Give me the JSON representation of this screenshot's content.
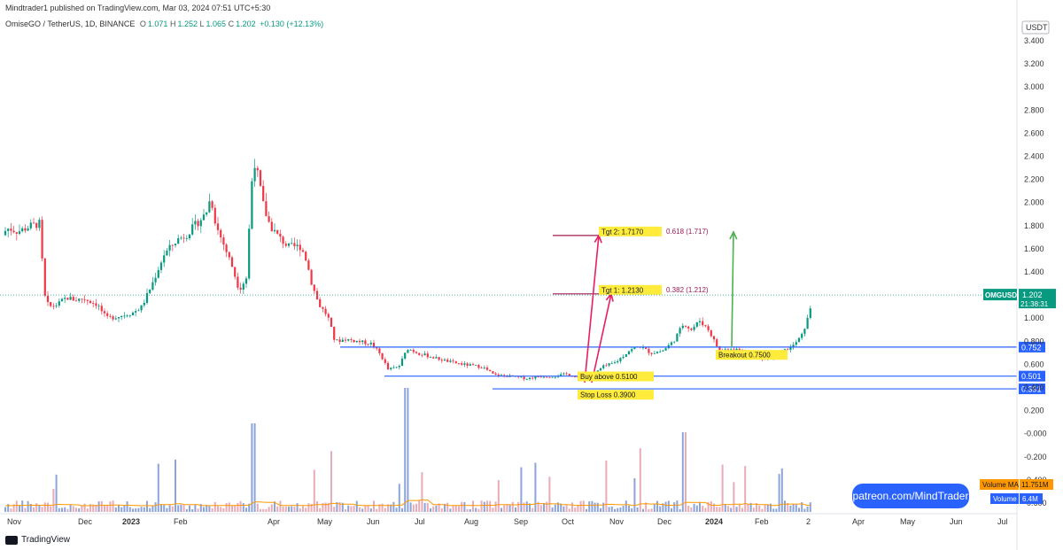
{
  "header": {
    "publisher": "Mindtrader1 published on TradingView.com, Mar 03, 2024 07:51 UTC+5:30",
    "pair": "OmiseGO / TetherUS, 1D, BINANCE",
    "o_label": "O",
    "o": "1.071",
    "h_label": "H",
    "h": "1.252",
    "l_label": "L",
    "l": "1.065",
    "c_label": "C",
    "c": "1.202",
    "change": "+0.130 (+12.13%)"
  },
  "colors": {
    "up": "#089981",
    "down": "#f23645",
    "level": "#2962ff",
    "fib": "#9c1b55",
    "target_arrow": "#e91e63",
    "green_arrow": "#4caf50",
    "label_bg": "#ffeb3b",
    "ma": "#ff9800"
  },
  "chart_data": {
    "type": "candlestick",
    "currency": "USDT",
    "y_ticks": [
      "3.400",
      "3.200",
      "3.000",
      "2.800",
      "2.600",
      "2.400",
      "2.200",
      "2.000",
      "1.800",
      "1.600",
      "1.400",
      "1.200",
      "1.000",
      "0.800",
      "0.600",
      "0.400",
      "0.200",
      "-0.000",
      "-0.200",
      "-0.400",
      "-0.600"
    ],
    "x_ticks": [
      "Nov",
      "Dec",
      "2023",
      "Feb",
      "Apr",
      "May",
      "Jun",
      "Jul",
      "Aug",
      "Sep",
      "Oct",
      "Nov",
      "Dec",
      "2024",
      "Feb",
      "2",
      "Apr",
      "May",
      "Jun",
      "Jul"
    ],
    "price_path": [
      [
        0,
        1.72
      ],
      [
        10,
        1.78
      ],
      [
        20,
        1.75
      ],
      [
        35,
        1.8
      ],
      [
        45,
        1.82
      ],
      [
        50,
        1.2
      ],
      [
        55,
        1.1
      ],
      [
        65,
        1.12
      ],
      [
        75,
        1.18
      ],
      [
        85,
        1.16
      ],
      [
        95,
        1.17
      ],
      [
        110,
        1.12
      ],
      [
        120,
        1.0
      ],
      [
        135,
        1.02
      ],
      [
        150,
        1.05
      ],
      [
        160,
        1.1
      ],
      [
        172,
        1.3
      ],
      [
        185,
        1.55
      ],
      [
        200,
        1.68
      ],
      [
        210,
        1.72
      ],
      [
        222,
        1.82
      ],
      [
        232,
        1.9
      ],
      [
        238,
        2.05
      ],
      [
        244,
        1.8
      ],
      [
        252,
        1.65
      ],
      [
        262,
        1.45
      ],
      [
        270,
        1.25
      ],
      [
        278,
        1.35
      ],
      [
        286,
        2.4
      ],
      [
        292,
        2.2
      ],
      [
        298,
        1.95
      ],
      [
        305,
        1.8
      ],
      [
        315,
        1.7
      ],
      [
        325,
        1.62
      ],
      [
        340,
        1.62
      ],
      [
        346,
        1.5
      ],
      [
        352,
        1.3
      ],
      [
        360,
        1.12
      ],
      [
        370,
        1.02
      ],
      [
        378,
        0.8
      ],
      [
        390,
        0.82
      ],
      [
        405,
        0.8
      ],
      [
        420,
        0.78
      ],
      [
        430,
        0.68
      ],
      [
        438,
        0.56
      ],
      [
        450,
        0.58
      ],
      [
        460,
        0.74
      ],
      [
        472,
        0.7
      ],
      [
        490,
        0.66
      ],
      [
        510,
        0.62
      ],
      [
        525,
        0.6
      ],
      [
        545,
        0.58
      ],
      [
        558,
        0.51
      ],
      [
        575,
        0.5
      ],
      [
        595,
        0.48
      ],
      [
        610,
        0.5
      ],
      [
        625,
        0.5
      ],
      [
        640,
        0.52
      ],
      [
        655,
        0.48
      ],
      [
        668,
        0.5
      ],
      [
        680,
        0.58
      ],
      [
        695,
        0.62
      ],
      [
        710,
        0.72
      ],
      [
        722,
        0.76
      ],
      [
        735,
        0.7
      ],
      [
        748,
        0.72
      ],
      [
        760,
        0.8
      ],
      [
        772,
        0.96
      ],
      [
        780,
        0.9
      ],
      [
        790,
        0.98
      ],
      [
        800,
        0.9
      ],
      [
        812,
        0.72
      ],
      [
        825,
        0.74
      ],
      [
        840,
        0.72
      ],
      [
        852,
        0.68
      ],
      [
        865,
        0.64
      ],
      [
        880,
        0.7
      ],
      [
        895,
        0.76
      ],
      [
        905,
        0.85
      ],
      [
        912,
        1.0
      ],
      [
        918,
        1.2
      ]
    ],
    "hlines": [
      {
        "name": "level-0.752",
        "label": "0.752",
        "value": 0.752
      },
      {
        "name": "level-0.501",
        "label": "0.501",
        "value": 0.501
      },
      {
        "name": "level-0.391",
        "label": "0.391",
        "value": 0.391
      }
    ],
    "fib_levels": [
      {
        "label": "0.618 (1.717)",
        "value": 1.717
      },
      {
        "label": "0.382 (1.212)",
        "value": 1.212
      }
    ],
    "annotations": {
      "tgt2": "Tgt 2: 1.7170",
      "tgt1": "Tgt 1: 1.2130",
      "buy": "Buy above 0.5100",
      "stop": "Stop Loss 0.3900",
      "breakout": "Breakout 0.7500"
    },
    "last_price": {
      "symbol": "OMGUSDT",
      "value": "1.202",
      "countdown": "21:38:31"
    },
    "volume_ma": {
      "label": "Volume MA",
      "value": "11.751M"
    },
    "volume": {
      "label": "Volume",
      "value": "6.4M"
    }
  },
  "footer": {
    "patreon": "patreon.com/MindTrader",
    "brand": "TradingView"
  }
}
